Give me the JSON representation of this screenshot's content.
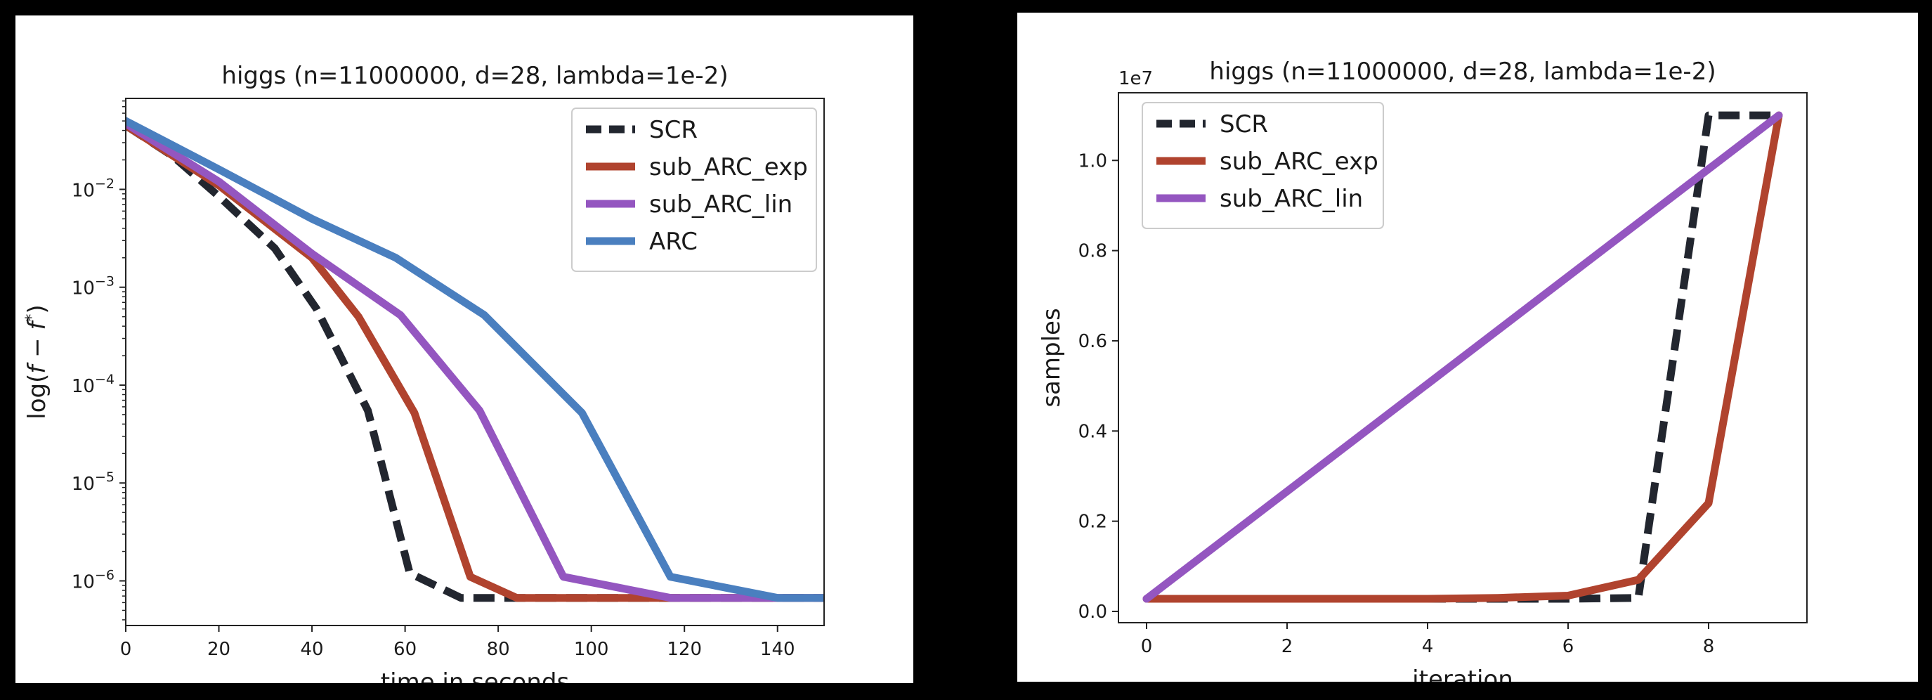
{
  "chart_data": [
    {
      "type": "line",
      "title": "higgs (n=11000000, d=28, lambda=1e-2)",
      "xlabel": "time in seconds",
      "ylabel": "log(f − f*)",
      "yscale": "log",
      "xlim": [
        0,
        150
      ],
      "ylim": [
        3.5e-07,
        0.085
      ],
      "xticks": [
        0,
        20,
        40,
        60,
        80,
        100,
        120,
        140
      ],
      "xtick_labels": [
        "0",
        "20",
        "40",
        "60",
        "80",
        "100",
        "120",
        "140"
      ],
      "yticks": [
        1e-06,
        1e-05,
        0.0001,
        0.001,
        0.01
      ],
      "ytick_labels": [
        {
          "base": "10",
          "exp": "−6"
        },
        {
          "base": "10",
          "exp": "−5"
        },
        {
          "base": "10",
          "exp": "−4"
        },
        {
          "base": "10",
          "exp": "−3"
        },
        {
          "base": "10",
          "exp": "−2"
        }
      ],
      "legend_position": "top-right",
      "series": [
        {
          "name": "SCR",
          "color": "#22262f",
          "dashed": true,
          "x": [
            0,
            10,
            20,
            32,
            41,
            52,
            61,
            72,
            84,
            150
          ],
          "y": [
            0.045,
            0.022,
            0.0085,
            0.0025,
            0.0006,
            5.5e-05,
            1.2e-06,
            6.7e-07,
            6.7e-07,
            6.7e-07
          ]
        },
        {
          "name": "sub_ARC_exp",
          "color": "#b0432e",
          "dashed": false,
          "x": [
            0,
            20,
            40,
            50,
            62,
            74,
            84,
            100,
            150
          ],
          "y": [
            0.045,
            0.011,
            0.002,
            0.0005,
            5.2e-05,
            1.1e-06,
            6.7e-07,
            6.7e-07,
            6.7e-07
          ]
        },
        {
          "name": "sub_ARC_lin",
          "color": "#9456c0",
          "dashed": false,
          "x": [
            0,
            20,
            40,
            59,
            76,
            94,
            117,
            150
          ],
          "y": [
            0.047,
            0.012,
            0.0022,
            0.00052,
            5.5e-05,
            1.1e-06,
            6.7e-07,
            6.7e-07
          ]
        },
        {
          "name": "ARC",
          "color": "#4a7fbf",
          "dashed": false,
          "x": [
            0,
            20,
            40,
            58,
            77,
            98,
            117,
            140,
            150
          ],
          "y": [
            0.05,
            0.016,
            0.005,
            0.002,
            0.00052,
            5.2e-05,
            1.1e-06,
            6.7e-07,
            6.7e-07
          ]
        }
      ]
    },
    {
      "type": "line",
      "title": "higgs (n=11000000, d=28, lambda=1e-2)",
      "xlabel": "iteration",
      "ylabel": "samples",
      "y_multiplier": "1e7",
      "xlim": [
        -0.4,
        9.4
      ],
      "ylim": [
        -0.025,
        1.15
      ],
      "xticks": [
        0,
        2,
        4,
        6,
        8
      ],
      "xtick_labels": [
        "0",
        "2",
        "4",
        "6",
        "8"
      ],
      "yticks": [
        0.0,
        0.2,
        0.4,
        0.6,
        0.8,
        1.0
      ],
      "ytick_labels": [
        "0.0",
        "0.2",
        "0.4",
        "0.6",
        "0.8",
        "1.0"
      ],
      "legend_position": "top-left",
      "series": [
        {
          "name": "SCR",
          "color": "#22262f",
          "dashed": true,
          "x": [
            0,
            1,
            2,
            3,
            4,
            5,
            6,
            7,
            8,
            9
          ],
          "y": [
            0.028,
            0.028,
            0.028,
            0.028,
            0.028,
            0.028,
            0.028,
            0.03,
            1.1,
            1.1
          ]
        },
        {
          "name": "sub_ARC_exp",
          "color": "#b0432e",
          "dashed": false,
          "x": [
            0,
            1,
            2,
            3,
            4,
            5,
            6,
            7,
            8,
            9
          ],
          "y": [
            0.028,
            0.028,
            0.028,
            0.028,
            0.028,
            0.03,
            0.035,
            0.07,
            0.24,
            1.1
          ]
        },
        {
          "name": "sub_ARC_lin",
          "color": "#9456c0",
          "dashed": false,
          "x": [
            0,
            9
          ],
          "y": [
            0.028,
            1.1
          ]
        }
      ]
    }
  ]
}
